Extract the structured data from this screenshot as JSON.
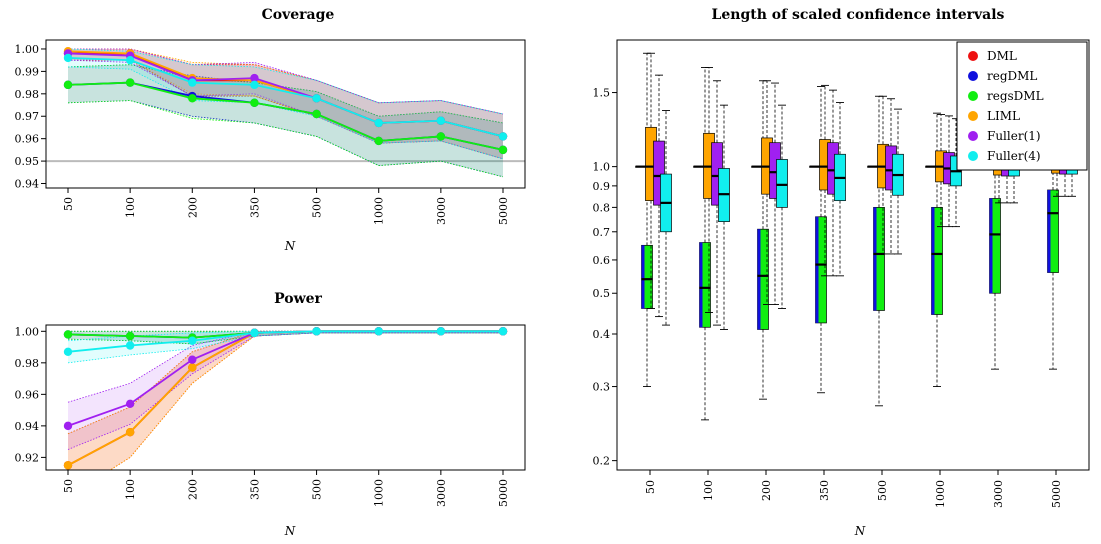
{
  "colors": {
    "DML": "#ee1111",
    "regDML": "#1010dd",
    "regsDML": "#11ee11",
    "LIML": "#ffa500",
    "Fuller(1)": "#a020f0",
    "Fuller(4)": "#11eeee",
    "reference": "#bbbbbb"
  },
  "chart_data": [
    {
      "id": "coverage",
      "type": "line",
      "title": "Coverage",
      "xlabel": "N",
      "ylabel": "",
      "categories": [
        "50",
        "100",
        "200",
        "350",
        "500",
        "1000",
        "3000",
        "5000"
      ],
      "ylim": [
        0.938,
        1.004
      ],
      "yticks": [
        "0.94",
        "0.95",
        "0.96",
        "0.97",
        "0.98",
        "0.99",
        "1.00"
      ],
      "reference_line": 0.95,
      "grid": false,
      "series": [
        {
          "name": "DML",
          "values": [
            0.998,
            0.998,
            0.986,
            0.986,
            0.978,
            0.967,
            0.968,
            0.961
          ],
          "band": [
            [
              0.995,
              1.0
            ],
            [
              0.995,
              1.0
            ],
            [
              0.979,
              0.993
            ],
            [
              0.979,
              0.993
            ],
            [
              0.97,
              0.986
            ],
            [
              0.958,
              0.976
            ],
            [
              0.959,
              0.977
            ],
            [
              0.951,
              0.971
            ]
          ]
        },
        {
          "name": "regDML",
          "values": [
            0.984,
            0.985,
            0.979,
            0.976,
            0.971,
            0.959,
            0.961,
            0.955
          ],
          "band": [
            [
              0.976,
              0.992
            ],
            [
              0.977,
              0.993
            ],
            [
              0.97,
              0.988
            ],
            [
              0.967,
              0.985
            ],
            [
              0.961,
              0.981
            ],
            [
              0.948,
              0.97
            ],
            [
              0.95,
              0.972
            ],
            [
              0.943,
              0.967
            ]
          ]
        },
        {
          "name": "regsDML",
          "values": [
            0.984,
            0.985,
            0.978,
            0.976,
            0.971,
            0.959,
            0.961,
            0.955
          ],
          "band": [
            [
              0.976,
              0.992
            ],
            [
              0.977,
              0.993
            ],
            [
              0.969,
              0.987
            ],
            [
              0.967,
              0.985
            ],
            [
              0.961,
              0.981
            ],
            [
              0.948,
              0.97
            ],
            [
              0.95,
              0.972
            ],
            [
              0.943,
              0.967
            ]
          ]
        },
        {
          "name": "LIML",
          "values": [
            0.999,
            0.998,
            0.987,
            0.986,
            0.978,
            0.967,
            0.968,
            0.961
          ],
          "band": [
            [
              0.996,
              1.0
            ],
            [
              0.995,
              1.0
            ],
            [
              0.98,
              0.994
            ],
            [
              0.979,
              0.993
            ],
            [
              0.97,
              0.986
            ],
            [
              0.958,
              0.976
            ],
            [
              0.959,
              0.977
            ],
            [
              0.951,
              0.971
            ]
          ]
        },
        {
          "name": "Fuller(1)",
          "values": [
            0.998,
            0.997,
            0.986,
            0.987,
            0.978,
            0.967,
            0.968,
            0.961
          ],
          "band": [
            [
              0.995,
              1.0
            ],
            [
              0.994,
              1.0
            ],
            [
              0.979,
              0.993
            ],
            [
              0.98,
              0.994
            ],
            [
              0.97,
              0.986
            ],
            [
              0.958,
              0.976
            ],
            [
              0.959,
              0.977
            ],
            [
              0.951,
              0.971
            ]
          ]
        },
        {
          "name": "Fuller(4)",
          "values": [
            0.996,
            0.995,
            0.985,
            0.984,
            0.978,
            0.967,
            0.968,
            0.961
          ],
          "band": [
            [
              0.992,
              1.0
            ],
            [
              0.991,
              0.999
            ],
            [
              0.977,
              0.993
            ],
            [
              0.976,
              0.992
            ],
            [
              0.97,
              0.986
            ],
            [
              0.958,
              0.976
            ],
            [
              0.959,
              0.977
            ],
            [
              0.951,
              0.971
            ]
          ]
        }
      ]
    },
    {
      "id": "power",
      "type": "line",
      "title": "Power",
      "xlabel": "N",
      "ylabel": "",
      "categories": [
        "50",
        "100",
        "200",
        "350",
        "500",
        "1000",
        "3000",
        "5000"
      ],
      "ylim": [
        0.912,
        1.004
      ],
      "yticks": [
        "0.92",
        "0.94",
        "0.96",
        "0.98",
        "1.00"
      ],
      "grid": false,
      "series": [
        {
          "name": "DML",
          "values": [
            0.915,
            0.936,
            0.977,
            0.999,
            1.0,
            1.0,
            1.0,
            1.0
          ],
          "band": [
            [
              0.895,
              0.935
            ],
            [
              0.92,
              0.952
            ],
            [
              0.967,
              0.987
            ],
            [
              0.997,
              1.0
            ],
            [
              0.999,
              1.0
            ],
            [
              0.999,
              1.0
            ],
            [
              0.999,
              1.0
            ],
            [
              0.999,
              1.0
            ]
          ]
        },
        {
          "name": "regDML",
          "values": [
            0.998,
            0.997,
            0.996,
            0.999,
            1.0,
            1.0,
            1.0,
            1.0
          ],
          "band": [
            [
              0.995,
              1.0
            ],
            [
              0.994,
              1.0
            ],
            [
              0.992,
              1.0
            ],
            [
              0.997,
              1.0
            ],
            [
              0.999,
              1.0
            ],
            [
              0.999,
              1.0
            ],
            [
              0.999,
              1.0
            ],
            [
              0.999,
              1.0
            ]
          ]
        },
        {
          "name": "regsDML",
          "values": [
            0.998,
            0.997,
            0.996,
            0.999,
            1.0,
            1.0,
            1.0,
            1.0
          ],
          "band": [
            [
              0.995,
              1.0
            ],
            [
              0.994,
              1.0
            ],
            [
              0.992,
              1.0
            ],
            [
              0.997,
              1.0
            ],
            [
              0.999,
              1.0
            ],
            [
              0.999,
              1.0
            ],
            [
              0.999,
              1.0
            ],
            [
              0.999,
              1.0
            ]
          ]
        },
        {
          "name": "LIML",
          "values": [
            0.915,
            0.936,
            0.977,
            0.999,
            1.0,
            1.0,
            1.0,
            1.0
          ],
          "band": [
            [
              0.895,
              0.935
            ],
            [
              0.92,
              0.952
            ],
            [
              0.967,
              0.987
            ],
            [
              0.997,
              1.0
            ],
            [
              0.999,
              1.0
            ],
            [
              0.999,
              1.0
            ],
            [
              0.999,
              1.0
            ],
            [
              0.999,
              1.0
            ]
          ]
        },
        {
          "name": "Fuller(1)",
          "values": [
            0.94,
            0.954,
            0.982,
            0.999,
            1.0,
            1.0,
            1.0,
            1.0
          ],
          "band": [
            [
              0.925,
              0.955
            ],
            [
              0.941,
              0.967
            ],
            [
              0.973,
              0.991
            ],
            [
              0.997,
              1.0
            ],
            [
              0.999,
              1.0
            ],
            [
              0.999,
              1.0
            ],
            [
              0.999,
              1.0
            ],
            [
              0.999,
              1.0
            ]
          ]
        },
        {
          "name": "Fuller(4)",
          "values": [
            0.987,
            0.991,
            0.994,
            0.999,
            1.0,
            1.0,
            1.0,
            1.0
          ],
          "band": [
            [
              0.98,
              0.994
            ],
            [
              0.985,
              0.997
            ],
            [
              0.989,
              0.999
            ],
            [
              0.997,
              1.0
            ],
            [
              0.999,
              1.0
            ],
            [
              0.999,
              1.0
            ],
            [
              0.999,
              1.0
            ],
            [
              0.999,
              1.0
            ]
          ]
        }
      ]
    },
    {
      "id": "length",
      "type": "box",
      "title": "Length of scaled confidence intervals",
      "xlabel": "N",
      "ylabel": "",
      "categories": [
        "50",
        "100",
        "200",
        "350",
        "500",
        "1000",
        "3000",
        "5000"
      ],
      "ylim": [
        0.19,
        2.0
      ],
      "log_scale": true,
      "yticks": [
        "0.2",
        "0.3",
        "0.4",
        "0.5",
        "0.6",
        "0.7",
        "0.8",
        "0.9",
        "1.0",
        "1.5"
      ],
      "legend": {
        "position": "top-right",
        "entries": [
          "DML",
          "regDML",
          "regsDML",
          "LIML",
          "Fuller(1)",
          "Fuller(4)"
        ]
      },
      "series": [
        {
          "name": "DML",
          "boxes": [
            [
              1.0,
              1.0,
              1.0,
              1.0,
              1.0
            ],
            [
              1.0,
              1.0,
              1.0,
              1.0,
              1.0
            ],
            [
              1.0,
              1.0,
              1.0,
              1.0,
              1.0
            ],
            [
              1.0,
              1.0,
              1.0,
              1.0,
              1.0
            ],
            [
              1.0,
              1.0,
              1.0,
              1.0,
              1.0
            ],
            [
              1.0,
              1.0,
              1.0,
              1.0,
              1.0
            ],
            [
              1.0,
              1.0,
              1.0,
              1.0,
              1.0
            ],
            [
              1.0,
              1.0,
              1.0,
              1.0,
              1.0
            ]
          ]
        },
        {
          "name": "regDML",
          "boxes": [
            [
              0.3,
              0.46,
              0.54,
              0.65,
              1.86
            ],
            [
              0.25,
              0.415,
              0.515,
              0.66,
              1.72
            ],
            [
              0.28,
              0.41,
              0.55,
              0.71,
              1.6
            ],
            [
              0.29,
              0.425,
              0.585,
              0.76,
              1.55
            ],
            [
              0.27,
              0.455,
              0.62,
              0.8,
              1.47
            ],
            [
              0.3,
              0.445,
              0.62,
              0.8,
              1.34
            ],
            [
              0.33,
              0.5,
              0.69,
              0.84,
              1.25
            ],
            [
              0.33,
              0.56,
              0.775,
              0.88,
              1.2
            ]
          ]
        },
        {
          "name": "regsDML",
          "boxes": [
            [
              0.3,
              0.46,
              0.54,
              0.65,
              1.86
            ],
            [
              0.25,
              0.415,
              0.515,
              0.66,
              1.72
            ],
            [
              0.28,
              0.41,
              0.55,
              0.71,
              1.6
            ],
            [
              0.29,
              0.425,
              0.585,
              0.76,
              1.55
            ],
            [
              0.27,
              0.455,
              0.62,
              0.8,
              1.47
            ],
            [
              0.3,
              0.445,
              0.62,
              0.8,
              1.34
            ],
            [
              0.33,
              0.5,
              0.69,
              0.84,
              1.25
            ],
            [
              0.33,
              0.56,
              0.775,
              0.88,
              1.2
            ]
          ]
        },
        {
          "name": "LIML",
          "boxes": [
            [
              0.46,
              0.83,
              1.0,
              1.24,
              1.86
            ],
            [
              0.45,
              0.84,
              1.0,
              1.2,
              1.72
            ],
            [
              0.47,
              0.86,
              1.0,
              1.17,
              1.6
            ],
            [
              0.55,
              0.88,
              1.0,
              1.16,
              1.56
            ],
            [
              0.62,
              0.89,
              1.0,
              1.13,
              1.47
            ],
            [
              0.72,
              0.92,
              1.0,
              1.09,
              1.33
            ],
            [
              0.82,
              0.955,
              1.0,
              1.05,
              1.19
            ],
            [
              0.85,
              0.965,
              1.0,
              1.04,
              1.15
            ]
          ]
        },
        {
          "name": "Fuller(1)",
          "boxes": [
            [
              0.44,
              0.81,
              0.95,
              1.15,
              1.65
            ],
            [
              0.42,
              0.81,
              0.95,
              1.14,
              1.6
            ],
            [
              0.47,
              0.84,
              0.97,
              1.14,
              1.58
            ],
            [
              0.55,
              0.86,
              0.98,
              1.14,
              1.52
            ],
            [
              0.62,
              0.88,
              0.98,
              1.12,
              1.45
            ],
            [
              0.72,
              0.91,
              0.99,
              1.08,
              1.32
            ],
            [
              0.82,
              0.95,
              0.99,
              1.04,
              1.18
            ],
            [
              0.85,
              0.96,
              1.0,
              1.04,
              1.14
            ]
          ]
        },
        {
          "name": "Fuller(4)",
          "boxes": [
            [
              0.42,
              0.7,
              0.82,
              0.96,
              1.36
            ],
            [
              0.41,
              0.74,
              0.86,
              0.99,
              1.4
            ],
            [
              0.46,
              0.8,
              0.905,
              1.04,
              1.4
            ],
            [
              0.55,
              0.83,
              0.94,
              1.07,
              1.42
            ],
            [
              0.62,
              0.855,
              0.955,
              1.07,
              1.37
            ],
            [
              0.72,
              0.9,
              0.975,
              1.06,
              1.3
            ],
            [
              0.82,
              0.95,
              0.99,
              1.04,
              1.18
            ],
            [
              0.85,
              0.96,
              0.995,
              1.04,
              1.14
            ]
          ]
        }
      ]
    }
  ]
}
